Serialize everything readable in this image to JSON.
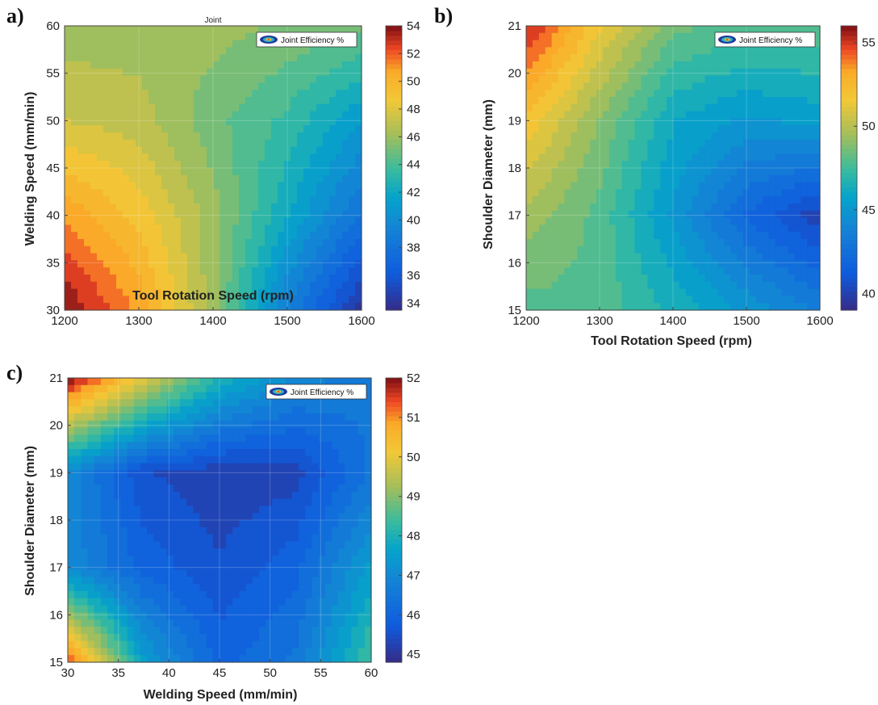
{
  "chart_data": [
    {
      "id": "a",
      "type": "heatmap",
      "panel_label": "a)",
      "title": "Joint",
      "xlabel": "Tool Rotation Speed (rpm)",
      "ylabel": "Welding Speed (mm/min)",
      "xlim": [
        1200,
        1600
      ],
      "ylim": [
        30,
        60
      ],
      "xticks": [
        1200,
        1300,
        1400,
        1500,
        1600
      ],
      "yticks": [
        30,
        35,
        40,
        45,
        50,
        55,
        60
      ],
      "colorbar": {
        "range": [
          33.5,
          54
        ],
        "ticks": [
          34,
          36,
          38,
          40,
          42,
          44,
          46,
          48,
          50,
          52,
          54
        ]
      },
      "legend": {
        "label": "Joint Efficiency %",
        "position": "top-right"
      },
      "grid": true,
      "colormap": "jet",
      "values": {
        "x": [
          1200,
          1300,
          1400,
          1500,
          1600
        ],
        "y": [
          30,
          40,
          50,
          60
        ],
        "z": [
          [
            54,
            51,
            46,
            39,
            34
          ],
          [
            51,
            49,
            46,
            42,
            38
          ],
          [
            47.5,
            47,
            45,
            43.5,
            41
          ],
          [
            46,
            46,
            46,
            45.5,
            45
          ]
        ]
      }
    },
    {
      "id": "b",
      "type": "heatmap",
      "panel_label": "b)",
      "title": "",
      "xlabel": "Tool Rotation Speed (rpm)",
      "ylabel": "Shoulder Diameter (mm)",
      "xlim": [
        1200,
        1600
      ],
      "ylim": [
        15,
        21
      ],
      "xticks": [
        1200,
        1300,
        1400,
        1500,
        1600
      ],
      "yticks": [
        15,
        16,
        17,
        18,
        19,
        20,
        21
      ],
      "colorbar": {
        "range": [
          39,
          56
        ],
        "ticks": [
          40,
          45,
          50,
          55
        ]
      },
      "legend": {
        "label": "Joint Efficiency %",
        "position": "top-right"
      },
      "grid": true,
      "colormap": "jet",
      "values": {
        "x": [
          1200,
          1300,
          1400,
          1500,
          1600
        ],
        "y": [
          15,
          17,
          19,
          21
        ],
        "z": [
          [
            48,
            48,
            46.5,
            45,
            43.5
          ],
          [
            49.5,
            48,
            45,
            42,
            40
          ],
          [
            52,
            49,
            46,
            45,
            45.5
          ],
          [
            55.5,
            51.5,
            48.5,
            48,
            48
          ]
        ]
      }
    },
    {
      "id": "c",
      "type": "heatmap",
      "panel_label": "c)",
      "title": "",
      "xlabel": "Welding Speed (mm/min)",
      "ylabel": "Shoulder Diameter (mm)",
      "xlim": [
        30,
        60
      ],
      "ylim": [
        15,
        21
      ],
      "xticks": [
        30,
        35,
        40,
        45,
        50,
        55,
        60
      ],
      "yticks": [
        15,
        16,
        17,
        18,
        19,
        20,
        21
      ],
      "colorbar": {
        "range": [
          44.8,
          52
        ],
        "ticks": [
          45,
          46,
          47,
          48,
          49,
          50,
          51,
          52
        ]
      },
      "legend": {
        "label": "Joint Efficiency %",
        "position": "top-right"
      },
      "grid": true,
      "colormap": "jet",
      "values": {
        "x": [
          30,
          37.5,
          45,
          52.5,
          60
        ],
        "y": [
          15,
          17,
          19,
          21
        ],
        "z": [
          [
            51.5,
            47.5,
            46,
            46.5,
            48.5
          ],
          [
            47,
            46,
            45.5,
            46,
            47.5
          ],
          [
            47,
            45.5,
            45.2,
            45.3,
            46.5
          ],
          [
            52,
            50,
            48,
            47,
            46.5
          ]
        ]
      }
    }
  ]
}
